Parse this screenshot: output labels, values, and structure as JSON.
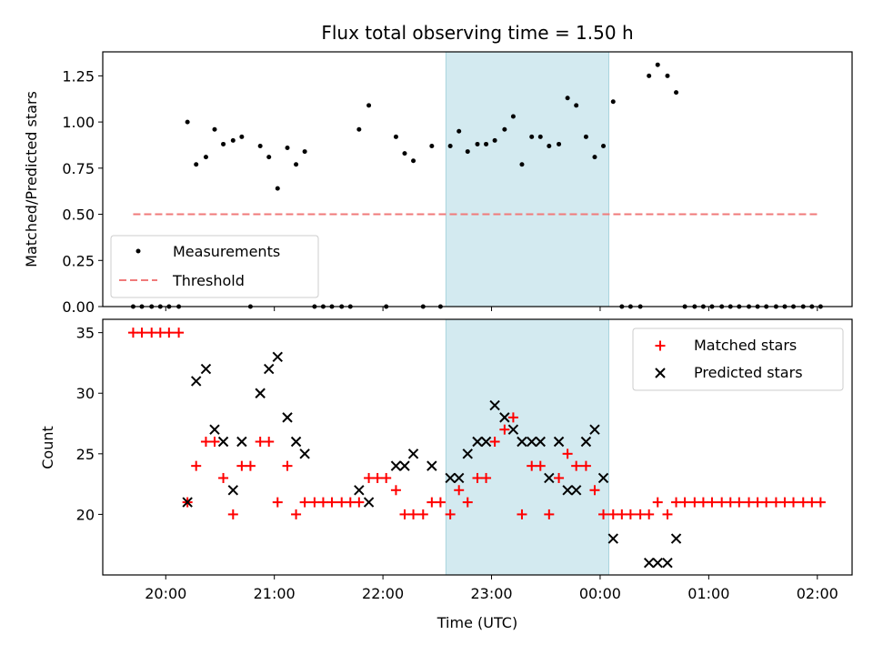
{
  "chart_data": {
    "type": "scatter",
    "title": "Flux total observing time = 1.50 h",
    "xlabel": "Time (UTC)",
    "x_ticks": [
      "20:00",
      "21:00",
      "22:00",
      "23:00",
      "00:00",
      "01:00",
      "02:00"
    ],
    "x_range_hours": [
      19.42,
      26.32
    ],
    "shaded_region_hours": [
      22.58,
      24.08
    ],
    "shade_color": "#d3eaf0",
    "panels": [
      {
        "ylabel": "Matched/Predicted stars",
        "ylim": [
          0,
          1.38
        ],
        "y_ticks": [
          "0.00",
          "0.25",
          "0.50",
          "0.75",
          "1.00",
          "1.25"
        ],
        "legend": {
          "location": "lower-left",
          "entries": [
            "Measurements",
            "Threshold"
          ]
        },
        "threshold": {
          "name": "Threshold",
          "value": 0.5,
          "x_start": 19.7,
          "x_end": 26.0,
          "color": "#f07a7a"
        },
        "series": [
          {
            "name": "Measurements",
            "marker": "dot",
            "color": "#000000",
            "points": [
              [
                19.7,
                0
              ],
              [
                19.78,
                0
              ],
              [
                19.87,
                0
              ],
              [
                19.95,
                0
              ],
              [
                20.03,
                0
              ],
              [
                20.12,
                0
              ],
              [
                20.2,
                1.0
              ],
              [
                20.28,
                0.77
              ],
              [
                20.37,
                0.81
              ],
              [
                20.45,
                0.96
              ],
              [
                20.53,
                0.88
              ],
              [
                20.62,
                0.9
              ],
              [
                20.7,
                0.92
              ],
              [
                20.78,
                0
              ],
              [
                20.87,
                0.87
              ],
              [
                20.95,
                0.81
              ],
              [
                21.03,
                0.64
              ],
              [
                21.12,
                0.86
              ],
              [
                21.2,
                0.77
              ],
              [
                21.28,
                0.84
              ],
              [
                21.37,
                0
              ],
              [
                21.45,
                0
              ],
              [
                21.53,
                0
              ],
              [
                21.62,
                0
              ],
              [
                21.7,
                0
              ],
              [
                21.78,
                0.96
              ],
              [
                21.87,
                1.09
              ],
              [
                22.03,
                0
              ],
              [
                22.12,
                0.92
              ],
              [
                22.2,
                0.83
              ],
              [
                22.28,
                0.79
              ],
              [
                22.37,
                0
              ],
              [
                22.45,
                0.87
              ],
              [
                22.53,
                0
              ],
              [
                22.62,
                0.87
              ],
              [
                22.7,
                0.95
              ],
              [
                22.78,
                0.84
              ],
              [
                22.87,
                0.88
              ],
              [
                22.95,
                0.88
              ],
              [
                23.03,
                0.9
              ],
              [
                23.12,
                0.96
              ],
              [
                23.2,
                1.03
              ],
              [
                23.28,
                0.77
              ],
              [
                23.37,
                0.92
              ],
              [
                23.45,
                0.92
              ],
              [
                23.53,
                0.87
              ],
              [
                23.62,
                0.88
              ],
              [
                23.7,
                1.13
              ],
              [
                23.78,
                1.09
              ],
              [
                23.87,
                0.92
              ],
              [
                23.95,
                0.81
              ],
              [
                24.03,
                0.87
              ],
              [
                24.12,
                1.11
              ],
              [
                24.2,
                0
              ],
              [
                24.28,
                0
              ],
              [
                24.37,
                0
              ],
              [
                24.45,
                1.25
              ],
              [
                24.53,
                1.31
              ],
              [
                24.62,
                1.25
              ],
              [
                24.7,
                1.16
              ],
              [
                24.78,
                0
              ],
              [
                24.87,
                0
              ],
              [
                24.95,
                0
              ],
              [
                25.03,
                0
              ],
              [
                25.12,
                0
              ],
              [
                25.2,
                0
              ],
              [
                25.28,
                0
              ],
              [
                25.37,
                0
              ],
              [
                25.45,
                0
              ],
              [
                25.53,
                0
              ],
              [
                25.62,
                0
              ],
              [
                25.7,
                0
              ],
              [
                25.78,
                0
              ],
              [
                25.87,
                0
              ],
              [
                25.95,
                0
              ],
              [
                26.03,
                0
              ]
            ]
          }
        ]
      },
      {
        "ylabel": "Count",
        "ylim": [
          15,
          36.1
        ],
        "y_ticks": [
          "20",
          "25",
          "30",
          "35"
        ],
        "legend": {
          "location": "top-right",
          "entries": [
            "Matched stars",
            "Predicted stars"
          ]
        },
        "series": [
          {
            "name": "Matched stars",
            "marker": "plus",
            "color": "#ff0000",
            "points": [
              [
                19.7,
                35
              ],
              [
                19.78,
                35
              ],
              [
                19.87,
                35
              ],
              [
                19.95,
                35
              ],
              [
                20.03,
                35
              ],
              [
                20.12,
                35
              ],
              [
                20.2,
                21
              ],
              [
                20.28,
                24
              ],
              [
                20.37,
                26
              ],
              [
                20.45,
                26
              ],
              [
                20.53,
                23
              ],
              [
                20.62,
                20
              ],
              [
                20.7,
                24
              ],
              [
                20.78,
                24
              ],
              [
                20.87,
                26
              ],
              [
                20.95,
                26
              ],
              [
                21.03,
                21
              ],
              [
                21.12,
                24
              ],
              [
                21.2,
                20
              ],
              [
                21.28,
                21
              ],
              [
                21.37,
                21
              ],
              [
                21.45,
                21
              ],
              [
                21.53,
                21
              ],
              [
                21.62,
                21
              ],
              [
                21.7,
                21
              ],
              [
                21.78,
                21
              ],
              [
                21.87,
                23
              ],
              [
                21.95,
                23
              ],
              [
                22.03,
                23
              ],
              [
                22.12,
                22
              ],
              [
                22.2,
                20
              ],
              [
                22.28,
                20
              ],
              [
                22.37,
                20
              ],
              [
                22.45,
                21
              ],
              [
                22.53,
                21
              ],
              [
                22.62,
                20
              ],
              [
                22.7,
                22
              ],
              [
                22.78,
                21
              ],
              [
                22.87,
                23
              ],
              [
                22.95,
                23
              ],
              [
                23.03,
                26
              ],
              [
                23.12,
                27
              ],
              [
                23.2,
                28
              ],
              [
                23.28,
                20
              ],
              [
                23.37,
                24
              ],
              [
                23.45,
                24
              ],
              [
                23.53,
                20
              ],
              [
                23.62,
                23
              ],
              [
                23.7,
                25
              ],
              [
                23.78,
                24
              ],
              [
                23.87,
                24
              ],
              [
                23.95,
                22
              ],
              [
                24.03,
                20
              ],
              [
                24.12,
                20
              ],
              [
                24.2,
                20
              ],
              [
                24.28,
                20
              ],
              [
                24.37,
                20
              ],
              [
                24.45,
                20
              ],
              [
                24.53,
                21
              ],
              [
                24.62,
                20
              ],
              [
                24.7,
                21
              ],
              [
                24.78,
                21
              ],
              [
                24.87,
                21
              ],
              [
                24.95,
                21
              ],
              [
                25.03,
                21
              ],
              [
                25.12,
                21
              ],
              [
                25.2,
                21
              ],
              [
                25.28,
                21
              ],
              [
                25.37,
                21
              ],
              [
                25.45,
                21
              ],
              [
                25.53,
                21
              ],
              [
                25.62,
                21
              ],
              [
                25.7,
                21
              ],
              [
                25.78,
                21
              ],
              [
                25.87,
                21
              ],
              [
                25.95,
                21
              ],
              [
                26.03,
                21
              ]
            ]
          },
          {
            "name": "Predicted stars",
            "marker": "x",
            "color": "#000000",
            "points": [
              [
                20.2,
                21
              ],
              [
                20.28,
                31
              ],
              [
                20.37,
                32
              ],
              [
                20.45,
                27
              ],
              [
                20.53,
                26
              ],
              [
                20.62,
                22
              ],
              [
                20.7,
                26
              ],
              [
                20.87,
                30
              ],
              [
                20.95,
                32
              ],
              [
                21.03,
                33
              ],
              [
                21.12,
                28
              ],
              [
                21.2,
                26
              ],
              [
                21.28,
                25
              ],
              [
                21.78,
                22
              ],
              [
                21.87,
                21
              ],
              [
                22.12,
                24
              ],
              [
                22.2,
                24
              ],
              [
                22.28,
                25
              ],
              [
                22.45,
                24
              ],
              [
                22.62,
                23
              ],
              [
                22.7,
                23
              ],
              [
                22.78,
                25
              ],
              [
                22.87,
                26
              ],
              [
                22.95,
                26
              ],
              [
                23.03,
                29
              ],
              [
                23.12,
                28
              ],
              [
                23.2,
                27
              ],
              [
                23.28,
                26
              ],
              [
                23.37,
                26
              ],
              [
                23.45,
                26
              ],
              [
                23.53,
                23
              ],
              [
                23.62,
                26
              ],
              [
                23.7,
                22
              ],
              [
                23.78,
                22
              ],
              [
                23.87,
                26
              ],
              [
                23.95,
                27
              ],
              [
                24.03,
                23
              ],
              [
                24.12,
                18
              ],
              [
                24.45,
                16
              ],
              [
                24.53,
                16
              ],
              [
                24.62,
                16
              ],
              [
                24.7,
                18
              ]
            ]
          }
        ]
      }
    ]
  }
}
